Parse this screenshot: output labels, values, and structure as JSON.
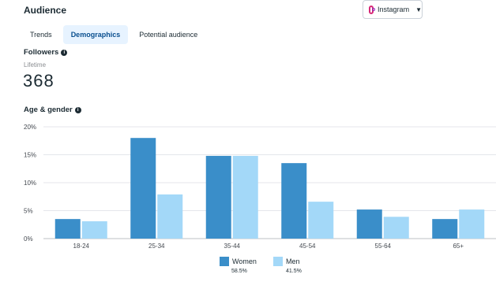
{
  "header": {
    "title": "Audience",
    "platform_select": {
      "value": "Instagram",
      "icon": "instagram-icon"
    }
  },
  "tabs": [
    {
      "label": "Trends",
      "active": false
    },
    {
      "label": "Demographics",
      "active": true
    },
    {
      "label": "Potential audience",
      "active": false
    }
  ],
  "followers": {
    "label": "Followers",
    "period": "Lifetime",
    "count": "368"
  },
  "age_gender": {
    "label": "Age & gender"
  },
  "colors": {
    "women": "#3a8ec9",
    "men": "#a3d8f8",
    "accent": "#0a4f8f",
    "tab_bg": "#e7f3ff"
  },
  "chart_data": {
    "type": "bar",
    "categories": [
      "18-24",
      "25-34",
      "35-44",
      "45-54",
      "55-64",
      "65+"
    ],
    "series": [
      {
        "name": "Women",
        "values": [
          3.5,
          18.0,
          14.8,
          13.5,
          5.2,
          3.5
        ],
        "color": "#3a8ec9",
        "share": "58.5%"
      },
      {
        "name": "Men",
        "values": [
          3.1,
          7.9,
          14.8,
          6.6,
          3.9,
          5.2
        ],
        "color": "#a3d8f8",
        "share": "41.5%"
      }
    ],
    "y_ticks": [
      "0%",
      "5%",
      "10%",
      "15%",
      "20%"
    ],
    "ylim": [
      0,
      20
    ],
    "grid": true,
    "legend_position": "bottom"
  }
}
